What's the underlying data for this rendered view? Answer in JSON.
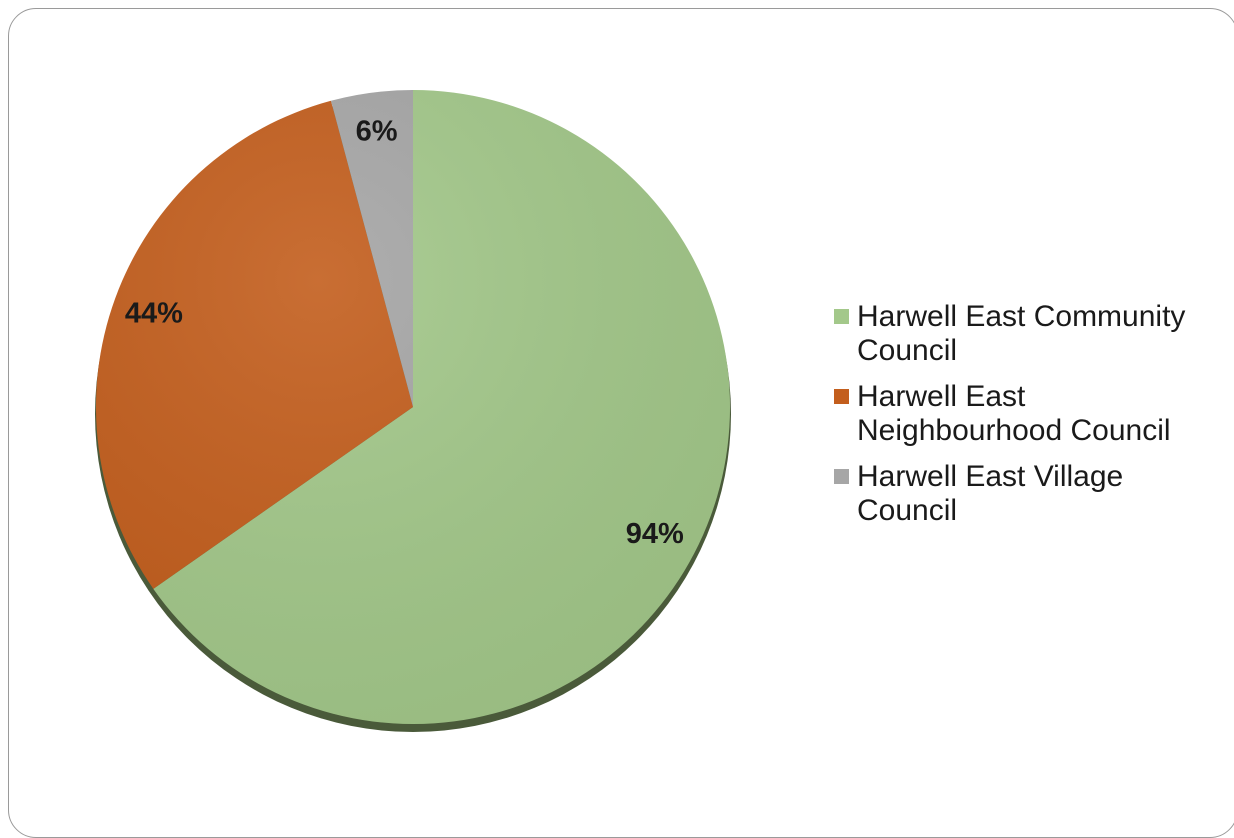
{
  "chart_data": {
    "type": "pie",
    "title": "",
    "slices": [
      {
        "label": "Harwell East Community Council",
        "value": 94,
        "value_label": "94%",
        "color": "#a3c88a"
      },
      {
        "label": "Harwell East Neighbourhood Council",
        "value": 44,
        "value_label": "44%",
        "color": "#c35e1d"
      },
      {
        "label": "Harwell East Village Council",
        "value": 6,
        "value_label": "6%",
        "color": "#a6a6a6"
      }
    ],
    "legend_position": "right"
  }
}
